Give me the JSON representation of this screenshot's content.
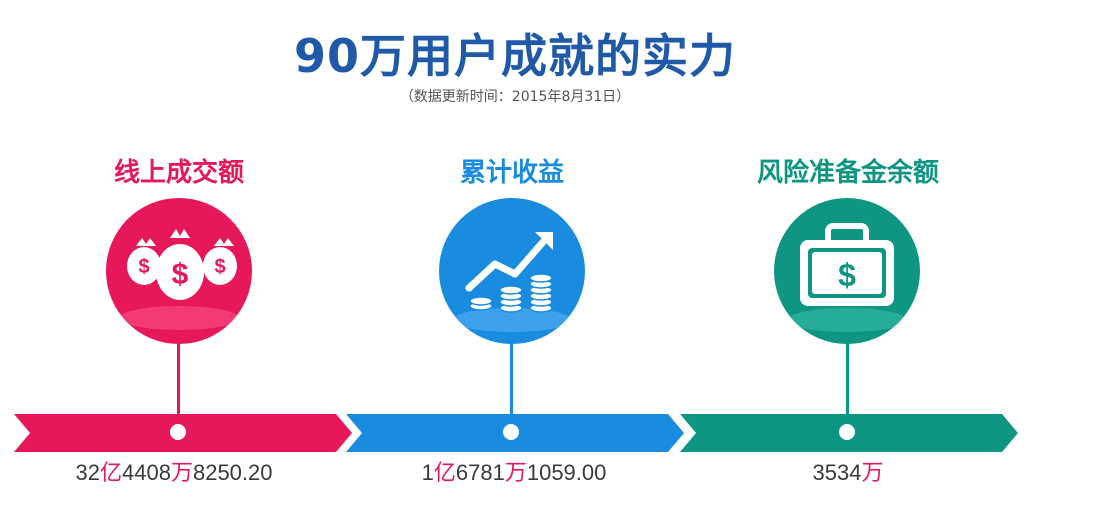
{
  "header": {
    "title": "90万用户成就的实力",
    "subtitle": "（数据更新时间：2015年8月31日）"
  },
  "stats": [
    {
      "label": "线上成交额",
      "icon": "money-bags-icon",
      "color": "#e6185a",
      "value_parts": [
        "32",
        "亿",
        "4408",
        "万",
        "8250.20"
      ]
    },
    {
      "label": "累计收益",
      "icon": "growth-chart-coins-icon",
      "color": "#1a8ce0",
      "value_parts": [
        "1",
        "亿",
        "6781",
        "万",
        "1059.00"
      ]
    },
    {
      "label": "风险准备金余额",
      "icon": "money-case-icon",
      "color": "#0e9683",
      "value_parts": [
        "3534",
        "万"
      ]
    }
  ]
}
